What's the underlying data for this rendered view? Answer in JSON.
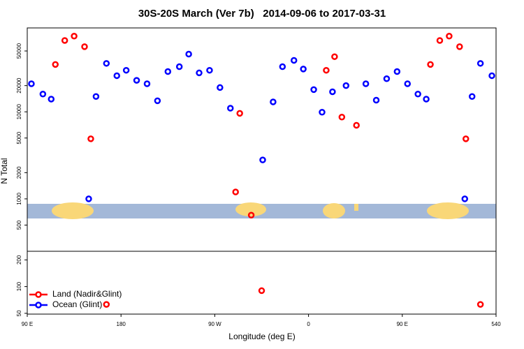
{
  "chart_data": {
    "type": "scatter",
    "title": "30S-20S March (Ver 7b)   2014-09-06 to 2017-03-31",
    "xlabel": "Longitude (deg E)",
    "ylabel": "N Total",
    "log_y": true,
    "legend": "lower left",
    "xlim": [
      90,
      540
    ],
    "xticks": [
      {
        "value": 90,
        "label": "90 E"
      },
      180,
      {
        "value": 270,
        "label": "90 W"
      },
      {
        "value": 360,
        "label": "0"
      },
      {
        "value": 450,
        "label": "90 E"
      },
      540
    ],
    "panels": [
      {
        "ylim": [
          250,
          92000
        ],
        "yticks": [
          500,
          1000,
          2000,
          5000,
          10000,
          20000,
          50000
        ]
      },
      {
        "ylim": [
          49,
          250
        ],
        "yticks": [
          50,
          100,
          200
        ]
      }
    ],
    "series": [
      {
        "name": "Land (Nadir&Glint)",
        "color": "#ff0000",
        "x": [
          117,
          126,
          135,
          145,
          151,
          166,
          290,
          294,
          305,
          315,
          377,
          385,
          392,
          406,
          477,
          486,
          495,
          505,
          511,
          525
        ],
        "values": [
          35000,
          66000,
          74000,
          56000,
          4900,
          63,
          1200,
          9600,
          650,
          90,
          30000,
          43000,
          8700,
          7000,
          35000,
          66000,
          74000,
          56000,
          4900,
          63
        ]
      },
      {
        "name": "Ocean (Glint)",
        "color": "#0000ff",
        "x": [
          94,
          105,
          113,
          149,
          156,
          166,
          176,
          185,
          195,
          205,
          215,
          225,
          236,
          245,
          255,
          265,
          275,
          285,
          316,
          326,
          335,
          346,
          355,
          365,
          373,
          383,
          396,
          415,
          425,
          435,
          445,
          455,
          465,
          473,
          510,
          517,
          525,
          536
        ],
        "values": [
          21000,
          16000,
          14000,
          1000,
          15000,
          36000,
          26000,
          30000,
          23000,
          21000,
          13400,
          29000,
          33000,
          46000,
          28000,
          30000,
          19000,
          11000,
          2800,
          13000,
          33000,
          39000,
          31000,
          18000,
          9900,
          17000,
          20000,
          21000,
          13600,
          24000,
          29000,
          21000,
          16000,
          14000,
          1000,
          15000,
          36000,
          26000
        ]
      }
    ]
  }
}
